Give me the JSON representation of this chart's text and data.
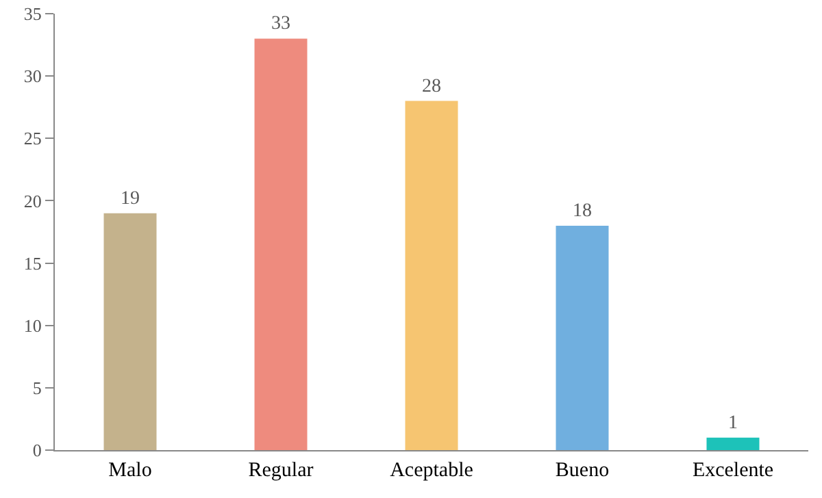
{
  "chart_data": {
    "type": "bar",
    "categories": [
      "Malo",
      "Regular",
      "Aceptable",
      "Bueno",
      "Excelente"
    ],
    "values": [
      19,
      33,
      28,
      18,
      1
    ],
    "colors": [
      "#c4b28c",
      "#ee8b7e",
      "#f6c571",
      "#70afdf",
      "#1dc2b9"
    ],
    "ylim": [
      0,
      35
    ],
    "yticks": [
      0,
      5,
      10,
      15,
      20,
      25,
      30,
      35
    ],
    "grid": false,
    "data_labels": true
  }
}
